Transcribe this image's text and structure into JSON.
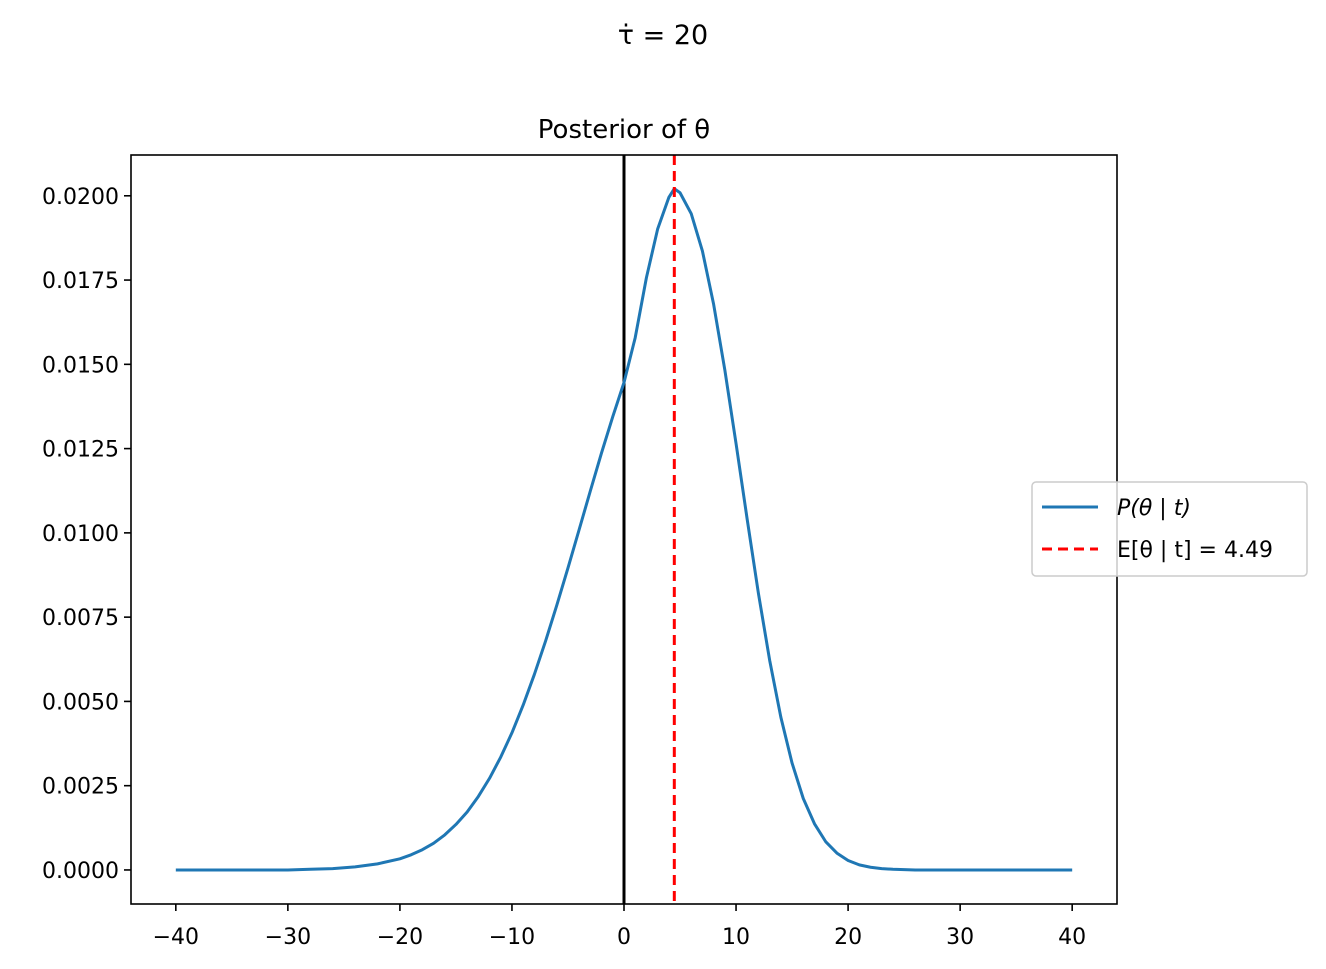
{
  "figure": {
    "suptitle": "τ̇ = 20"
  },
  "chart_data": {
    "type": "line",
    "title": "Posterior of θ",
    "xlabel": "",
    "ylabel": "",
    "xlim": [
      -44,
      44
    ],
    "ylim": [
      -0.00101,
      0.02121
    ],
    "x_ticks": [
      -40,
      -30,
      -20,
      -10,
      0,
      10,
      20,
      30,
      40
    ],
    "x_tick_labels": [
      "−40",
      "−30",
      "−20",
      "−10",
      "0",
      "10",
      "20",
      "30",
      "40"
    ],
    "y_ticks": [
      0,
      0.0025,
      0.005,
      0.0075,
      0.01,
      0.0125,
      0.015,
      0.0175,
      0.02
    ],
    "y_tick_labels": [
      "0.0000",
      "0.0025",
      "0.0050",
      "0.0075",
      "0.0100",
      "0.0125",
      "0.0150",
      "0.0175",
      "0.0200"
    ],
    "grid": false,
    "legend_position": "center-right",
    "series": [
      {
        "name": "P(θ | t)",
        "color": "#1f77b4",
        "style": "solid",
        "x": [
          -40,
          -35,
          -30,
          -28,
          -26,
          -24,
          -22,
          -20,
          -19,
          -18,
          -17,
          -16,
          -15,
          -14,
          -13,
          -12,
          -11,
          -10,
          -9,
          -8,
          -7,
          -6,
          -5,
          -4,
          -3,
          -2,
          -1,
          0,
          1,
          2,
          3,
          4,
          4.49,
          5,
          6,
          7,
          8,
          9,
          10,
          11,
          12,
          13,
          14,
          15,
          16,
          17,
          18,
          19,
          20,
          21,
          22,
          23,
          24,
          25,
          26,
          28,
          30,
          32,
          34,
          36,
          38,
          40
        ],
        "y": [
          0.0,
          0.0,
          0.0,
          2e-05,
          4e-05,
          9e-05,
          0.00018,
          0.00033,
          0.00045,
          0.0006,
          0.00079,
          0.00104,
          0.00135,
          0.00172,
          0.00218,
          0.00272,
          0.00335,
          0.00407,
          0.00489,
          0.0058,
          0.00679,
          0.00785,
          0.00896,
          0.0101,
          0.01125,
          0.01238,
          0.01345,
          0.01446,
          0.01579,
          0.01757,
          0.01901,
          0.01995,
          0.02021,
          0.02009,
          0.01947,
          0.01836,
          0.01678,
          0.01483,
          0.01265,
          0.01039,
          0.0082,
          0.00622,
          0.00453,
          0.00317,
          0.00212,
          0.00137,
          0.00084,
          0.0005,
          0.00028,
          0.00015,
          8e-05,
          4e-05,
          2e-05,
          1e-05,
          0.0,
          0.0,
          0.0,
          0.0,
          0.0,
          0.0,
          0.0,
          0.0
        ]
      },
      {
        "name": "E[θ | t] = 4.49",
        "color": "#ff0000",
        "style": "dashed",
        "vline_x": 4.49
      }
    ],
    "reference_lines": [
      {
        "orientation": "vertical",
        "x": 0,
        "color": "#000000",
        "style": "solid"
      }
    ]
  }
}
